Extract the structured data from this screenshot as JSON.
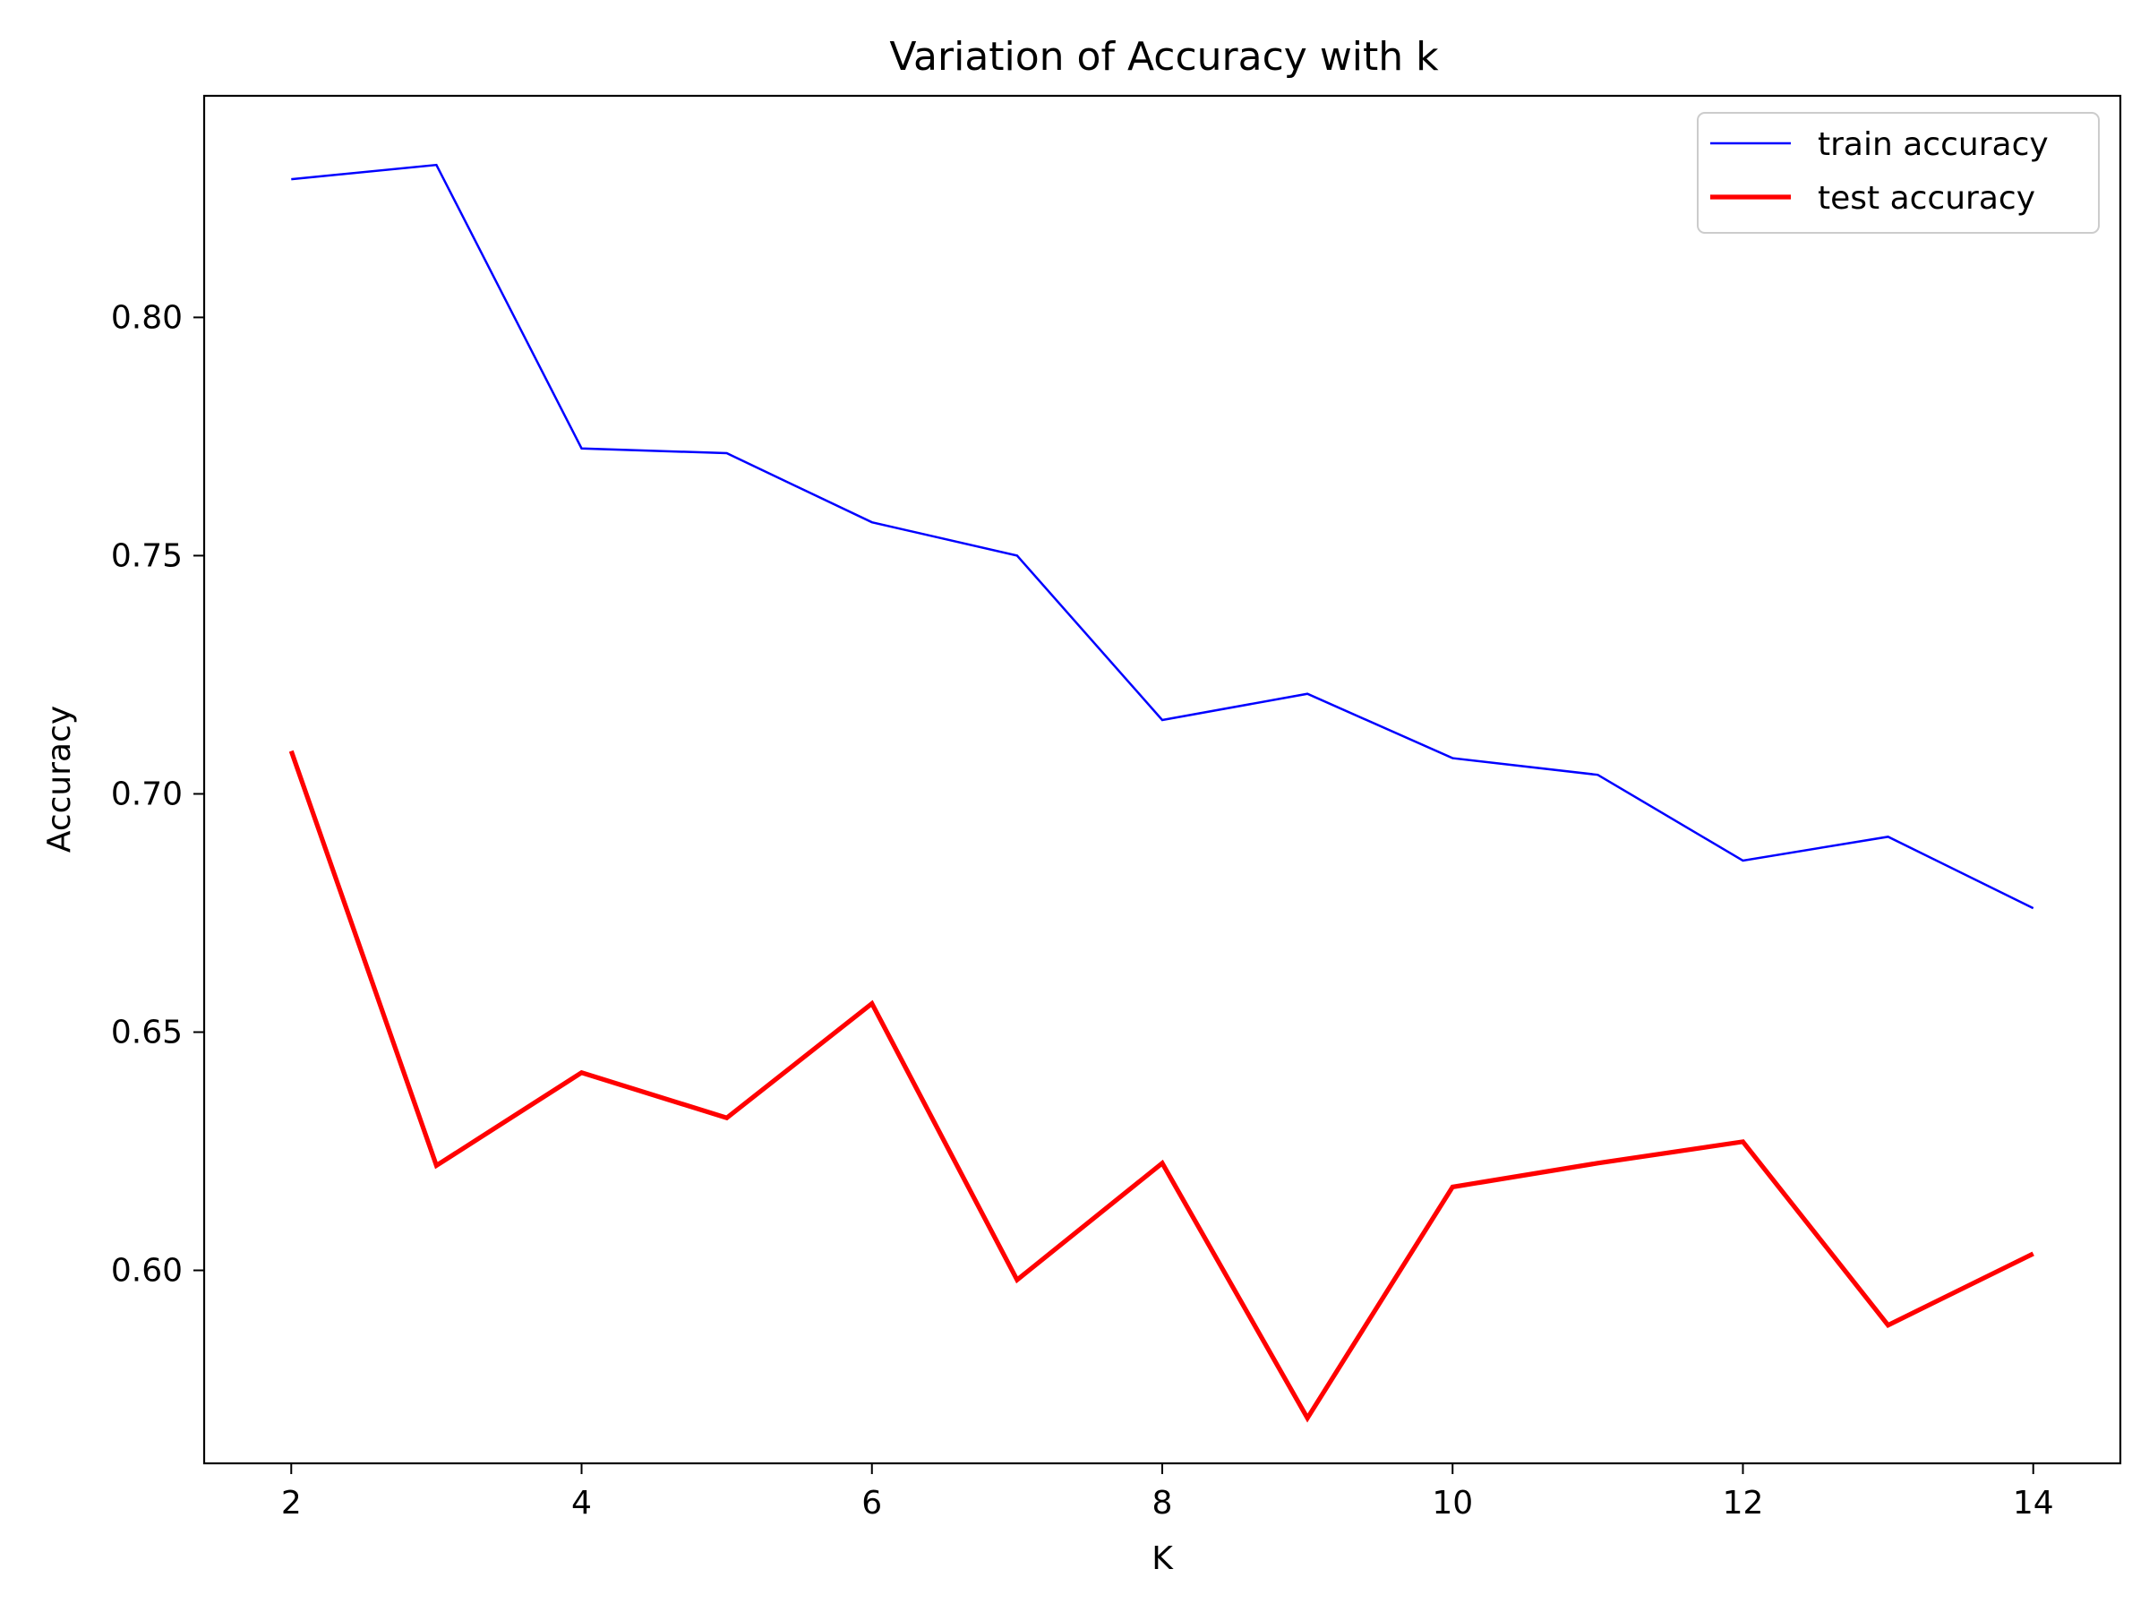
{
  "chart_data": {
    "type": "line",
    "title": "Variation of Accuracy with k",
    "xlabel": "K",
    "ylabel": "Accuracy",
    "x": [
      2,
      3,
      4,
      5,
      6,
      7,
      8,
      9,
      10,
      11,
      12,
      13,
      14
    ],
    "xlim": [
      1.4,
      14.6
    ],
    "ylim": [
      0.5595,
      0.8465
    ],
    "xticks": [
      2,
      4,
      6,
      8,
      10,
      12,
      14
    ],
    "xtick_labels": [
      "2",
      "4",
      "6",
      "8",
      "10",
      "12",
      "14"
    ],
    "yticks": [
      0.6,
      0.65,
      0.7,
      0.75,
      0.8
    ],
    "ytick_labels": [
      "0.60",
      "0.65",
      "0.70",
      "0.75",
      "0.80"
    ],
    "grid": false,
    "legend_position": "top-right",
    "series": [
      {
        "name": "train accuracy",
        "color": "#0000ff",
        "line_style": "thin",
        "values": [
          0.829,
          0.832,
          0.7725,
          0.7715,
          0.757,
          0.75,
          0.7155,
          0.721,
          0.7075,
          0.704,
          0.686,
          0.691,
          0.676
        ]
      },
      {
        "name": "test accuracy",
        "color": "#ff0000",
        "line_style": "thick",
        "values": [
          0.709,
          0.622,
          0.6415,
          0.632,
          0.656,
          0.598,
          0.6225,
          0.569,
          0.6175,
          0.6225,
          0.627,
          0.5885,
          0.6035
        ]
      }
    ]
  }
}
